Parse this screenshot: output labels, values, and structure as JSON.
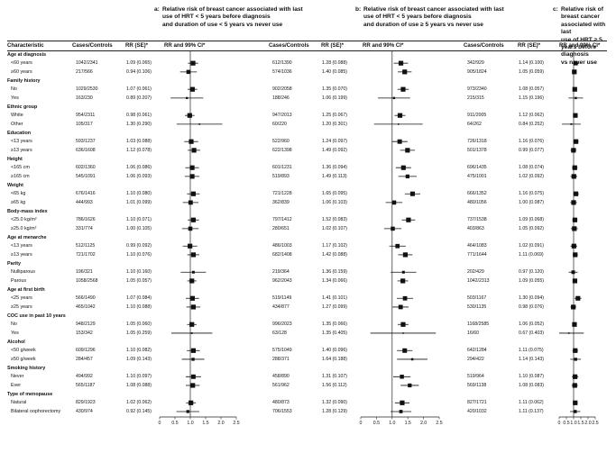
{
  "panels": [
    {
      "letter": "a:",
      "title": [
        "Relative risk of breast cancer associated with last",
        "use of HRT < 5 years before diagnosis",
        "and duration of use < 5 years vs never use"
      ]
    },
    {
      "letter": "b:",
      "title": [
        "Relative risk of breast cancer associated with last",
        "use of HRT < 5 years before diagnosis",
        "and duration of use ≥ 5 years vs never use"
      ]
    },
    {
      "letter": "c:",
      "title": [
        "Relative risk of breast cancer associated with last",
        "use of HRT ≥ 5 years before diagnosis",
        "vs never use"
      ]
    }
  ],
  "headers": {
    "characteristic": "Characteristic",
    "cases": "Cases/Controls",
    "rr": "RR (SE)*",
    "ci": "RR and 99% CI*"
  },
  "axis_ticks": [
    "0",
    "0.5",
    "1.0",
    "1.5",
    "2.0",
    "2.5"
  ],
  "chart_data": {
    "type": "forest",
    "x_range": [
      0,
      2.5
    ],
    "reference_line": 1.0,
    "rows": [
      {
        "type": "cat",
        "label": "Age at diagnosis"
      },
      {
        "type": "row",
        "label": "<60 years",
        "a": [
          "1042/2341",
          "1.09 (0.065)"
        ],
        "b": [
          "612/1390",
          "1.28 (0.088)"
        ],
        "c": [
          "342/929",
          "1.14 (0.100)"
        ]
      },
      {
        "type": "row",
        "label": "≥60 years",
        "a": [
          "217/566",
          "0.94 (0.106)"
        ],
        "b": [
          "574/1036",
          "1.40 (0.085)"
        ],
        "c": [
          "905/1824",
          "1.05 (0.059)"
        ]
      },
      {
        "type": "cat",
        "label": "Family history"
      },
      {
        "type": "row",
        "label": "No",
        "a": [
          "1029/2530",
          "1.07 (0.061)"
        ],
        "b": [
          "902/2058",
          "1.35 (0.070)"
        ],
        "c": [
          "973/2340",
          "1.08 (0.057)"
        ]
      },
      {
        "type": "row",
        "label": "Yes",
        "a": [
          "163/230",
          "0.89 (0.207)"
        ],
        "b": [
          "188/246",
          "1.06 (0.199)"
        ],
        "c": [
          "215/315",
          "1.15 (0.196)"
        ]
      },
      {
        "type": "cat",
        "label": "Ethnic group"
      },
      {
        "type": "row",
        "label": "White",
        "a": [
          "954/2311",
          "0.98 (0.061)"
        ],
        "b": [
          "947/2013",
          "1.25 (0.067)"
        ],
        "c": [
          "911/2005",
          "1.12 (0.062)"
        ]
      },
      {
        "type": "row",
        "label": "Other",
        "a": [
          "105/317",
          "1.30 (0.290)"
        ],
        "b": [
          "60/220",
          "1.20 (0.301)"
        ],
        "c": [
          "64/262",
          "0.84 (0.252)"
        ]
      },
      {
        "type": "cat",
        "label": "Education"
      },
      {
        "type": "row",
        "label": "<13 years",
        "a": [
          "593/1237",
          "1.03 (0.088)"
        ],
        "b": [
          "522/960",
          "1.24 (0.097)"
        ],
        "c": [
          "726/1318",
          "1.16 (0.076)"
        ]
      },
      {
        "type": "row",
        "label": "≥13 years",
        "a": [
          "636/1608",
          "1.12 (0.078)"
        ],
        "b": [
          "622/1398",
          "1.49 (0.092)"
        ],
        "c": [
          "501/1378",
          "0.99 (0.077)"
        ]
      },
      {
        "type": "cat",
        "label": "Height"
      },
      {
        "type": "row",
        "label": "<165 cm",
        "a": [
          "602/1360",
          "1.06 (0.086)"
        ],
        "b": [
          "601/1231",
          "1.36 (0.094)"
        ],
        "c": [
          "696/1435",
          "1.08 (0.074)"
        ]
      },
      {
        "type": "row",
        "label": "≥165 cm",
        "a": [
          "545/1091",
          "1.06 (0.093)"
        ],
        "b": [
          "519/893",
          "1.49 (0.113)"
        ],
        "c": [
          "475/1001",
          "1.02 (0.092)"
        ]
      },
      {
        "type": "cat",
        "label": "Weight"
      },
      {
        "type": "row",
        "label": "<65 kg",
        "a": [
          "676/1416",
          "1.10 (0.080)"
        ],
        "b": [
          "721/1228",
          "1.65 (0.095)"
        ],
        "c": [
          "666/1352",
          "1.16 (0.075)"
        ]
      },
      {
        "type": "row",
        "label": "≥65 kg",
        "a": [
          "444/993",
          "1.01 (0.099)"
        ],
        "b": [
          "362/839",
          "1.06 (0.103)"
        ],
        "c": [
          "480/1056",
          "1.00 (0.087)"
        ]
      },
      {
        "type": "cat",
        "label": "Body-mass index"
      },
      {
        "type": "row",
        "label": "<25.0 kg/m²",
        "a": [
          "786/1626",
          "1.10 (0.071)"
        ],
        "b": [
          "797/1412",
          "1.52 (0.083)"
        ],
        "c": [
          "737/1538",
          "1.09 (0.068)"
        ]
      },
      {
        "type": "row",
        "label": "≥25.0 kg/m²",
        "a": [
          "331/774",
          "1.00 (0.105)"
        ],
        "b": [
          "280/651",
          "1.02 (0.107)"
        ],
        "c": [
          "403/863",
          "1.05 (0.092)"
        ]
      },
      {
        "type": "cat",
        "label": "Age at menarche"
      },
      {
        "type": "row",
        "label": "<13 years",
        "a": [
          "512/1125",
          "0.99 (0.092)"
        ],
        "b": [
          "486/1003",
          "1.17 (0.102)"
        ],
        "c": [
          "464/1083",
          "1.02 (0.091)"
        ]
      },
      {
        "type": "row",
        "label": "≥13 years",
        "a": [
          "721/1702",
          "1.10 (0.076)"
        ],
        "b": [
          "682/1408",
          "1.42 (0.088)"
        ],
        "c": [
          "771/1644",
          "1.11 (0.069)"
        ]
      },
      {
        "type": "cat",
        "label": "Parity"
      },
      {
        "type": "row",
        "label": "Nulliparous",
        "a": [
          "196/321",
          "1.10 (0.160)"
        ],
        "b": [
          "219/364",
          "1.36 (0.159)"
        ],
        "c": [
          "202/429",
          "0.97 (0.120)"
        ]
      },
      {
        "type": "row",
        "label": "Parous",
        "a": [
          "1058/2568",
          "1.05 (0.057)"
        ],
        "b": [
          "962/2043",
          "1.34 (0.066)"
        ],
        "c": [
          "1042/2313",
          "1.09 (0.055)"
        ]
      },
      {
        "type": "cat",
        "label": "Age at first birth"
      },
      {
        "type": "row",
        "label": "<25 years",
        "a": [
          "566/1490",
          "1.07 (0.084)"
        ],
        "b": [
          "519/1149",
          "1.41 (0.101)"
        ],
        "c": [
          "503/1167",
          "1.30 (0.094)"
        ]
      },
      {
        "type": "row",
        "label": "≥25 years",
        "a": [
          "465/1042",
          "1.10 (0.088)"
        ],
        "b": [
          "434/877",
          "1.27 (0.099)"
        ],
        "c": [
          "530/1135",
          "0.98 (0.076)"
        ]
      },
      {
        "type": "cat",
        "label": "COC use in past 10 years"
      },
      {
        "type": "row",
        "label": "No",
        "a": [
          "948/2129",
          "1.05 (0.060)"
        ],
        "b": [
          "996/2023",
          "1.35 (0.066)"
        ],
        "c": [
          "1168/2585",
          "1.06 (0.052)"
        ]
      },
      {
        "type": "row",
        "label": "Yes",
        "a": [
          "153/342",
          "1.05 (0.259)"
        ],
        "b": [
          "63/128",
          "1.35 (0.405)"
        ],
        "c": [
          "16/60",
          "0.67 (0.403)"
        ]
      },
      {
        "type": "cat",
        "label": "Alcohol"
      },
      {
        "type": "row",
        "label": "<50 g/week",
        "a": [
          "609/1296",
          "1.10 (0.082)"
        ],
        "b": [
          "575/1049",
          "1.40 (0.096)"
        ],
        "c": [
          "642/1284",
          "1.11 (0.075)"
        ]
      },
      {
        "type": "row",
        "label": "≥50 g/week",
        "a": [
          "284/457",
          "1.09 (0.143)"
        ],
        "b": [
          "288/371",
          "1.64 (0.188)"
        ],
        "c": [
          "294/422",
          "1.14 (0.143)"
        ]
      },
      {
        "type": "cat",
        "label": "Smoking history"
      },
      {
        "type": "row",
        "label": "Never",
        "a": [
          "494/992",
          "1.10 (0.097)"
        ],
        "b": [
          "458/890",
          "1.31 (0.107)"
        ],
        "c": [
          "519/964",
          "1.10 (0.087)"
        ]
      },
      {
        "type": "row",
        "label": "Ever",
        "a": [
          "565/1187",
          "1.08 (0.088)"
        ],
        "b": [
          "561/962",
          "1.56 (0.112)"
        ],
        "c": [
          "569/1138",
          "1.08 (0.083)"
        ]
      },
      {
        "type": "cat",
        "label": "Type of menopause"
      },
      {
        "type": "row",
        "label": "Natural",
        "a": [
          "829/1923",
          "1.02 (0.062)"
        ],
        "b": [
          "480/873",
          "1.32 (0.090)"
        ],
        "c": [
          "827/1721",
          "1.11 (0.062)"
        ]
      },
      {
        "type": "row",
        "label": "Bilateral oophorectomy",
        "a": [
          "430/974",
          "0.92 (0.145)"
        ],
        "b": [
          "706/1553",
          "1.28 (0.129)"
        ],
        "c": [
          "420/1032",
          "1.11 (0.137)"
        ]
      }
    ]
  }
}
